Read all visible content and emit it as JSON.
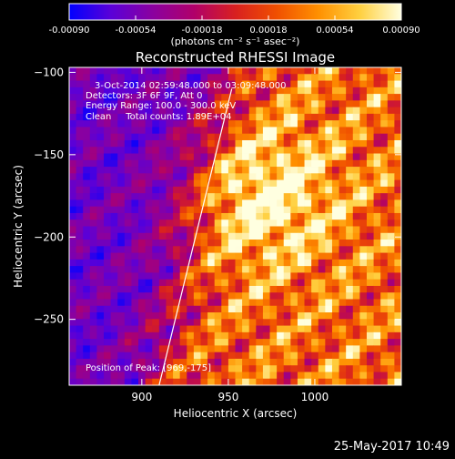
{
  "chart_data": {
    "type": "heatmap",
    "title": "Reconstructed RHESSI Image",
    "xlabel": "Heliocentric X (arcsec)",
    "ylabel": "Heliocentric Y (arcsec)",
    "xlim": [
      858,
      1050
    ],
    "ylim": [
      -290,
      -97
    ],
    "x_ticks": [
      900,
      950,
      1000
    ],
    "y_ticks": [
      -100,
      -150,
      -200,
      -250
    ],
    "colorbar": {
      "range": [
        -0.0009,
        0.0009
      ],
      "ticks": [
        "-0.00090",
        "-0.00054",
        "-0.00018",
        "0.00018",
        "0.00054",
        "0.00090"
      ],
      "ticks_values": [
        -0.0009,
        -0.00054,
        -0.00018,
        0.00018,
        0.00054,
        0.0009
      ],
      "unit_label": "(photons cm⁻² s⁻¹ asec⁻²)",
      "colormap": [
        "#0000ff",
        "#5a00d8",
        "#8a00a0",
        "#b0006a",
        "#d82020",
        "#f05000",
        "#ff9000",
        "#ffd040",
        "#ffffe0"
      ]
    },
    "annotations": {
      "time_range": "3-Oct-2014 02:59:48.000 to 03:09:48.000",
      "detectors": "Detectors: 3F 6F 9F, Att 0",
      "energy": "Energy Range: 100.0 - 300.0 keV",
      "method_counts": "Clean     Total counts: 1.89E+04",
      "peak": "Position of Peak: [969,-175]"
    },
    "limb_line": {
      "x": [
        910,
        952
      ],
      "y": [
        -290,
        -110
      ]
    },
    "peak_position": [
      969,
      -175
    ],
    "grid": false
  },
  "footer": {
    "timestamp": "25-May-2017 10:49"
  },
  "colors": {
    "background": "#000000",
    "text": "#ffffff"
  }
}
